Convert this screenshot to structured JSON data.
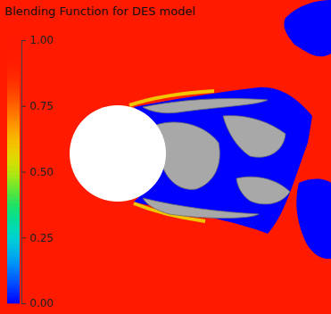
{
  "chart_data": {
    "type": "contour",
    "title": "Blending Function for DES model",
    "field_values": [
      1,
      0,
      0,
      0,
      0.6
    ],
    "colorbar": {
      "range": [
        0,
        1
      ],
      "ticks": [
        {
          "value": 1,
          "label": "1.00"
        },
        {
          "value": 0.75,
          "label": "0.75"
        },
        {
          "value": 0.5,
          "label": "0.50"
        },
        {
          "value": 0.25,
          "label": "0.25"
        },
        {
          "value": 0,
          "label": "0.00"
        }
      ]
    }
  }
}
